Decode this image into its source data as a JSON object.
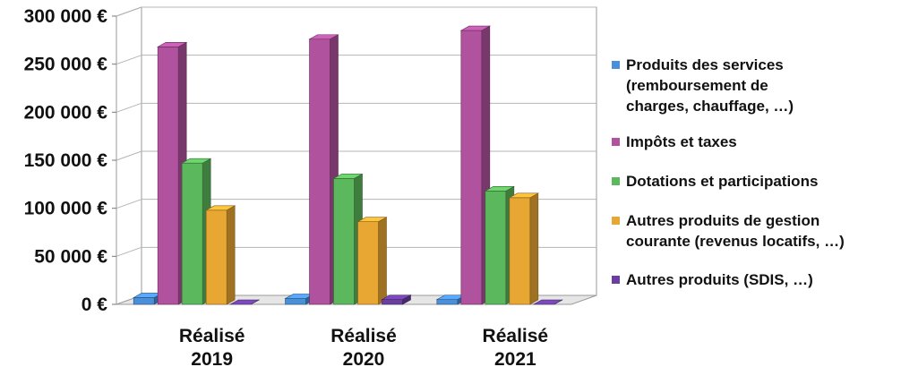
{
  "chart_data": {
    "type": "bar",
    "categories": [
      "Réalisé 2019",
      "Réalisé 2020",
      "Réalisé 2021"
    ],
    "category_lines": [
      [
        "Réalisé",
        "2019"
      ],
      [
        "Réalisé",
        "2020"
      ],
      [
        "Réalisé",
        "2021"
      ]
    ],
    "y_ticks": [
      "0 €",
      "50 000 €",
      "100 000 €",
      "150 000 €",
      "200 000 €",
      "250 000 €",
      "300 000 €"
    ],
    "ylim": [
      0,
      300000
    ],
    "grid": true,
    "legend_position": "right",
    "series": [
      {
        "name": "Produits des services (remboursement de charges, chauffage, …)",
        "legend_lines": [
          "Produits des services",
          "(remboursement de",
          "charges, chauffage, …)"
        ],
        "color": "#4a90d9",
        "values": [
          7000,
          6000,
          5000
        ]
      },
      {
        "name": "Impôts et taxes",
        "legend_lines": [
          "Impôts et taxes"
        ],
        "color": "#b0529e",
        "values": [
          268000,
          276000,
          285000
        ]
      },
      {
        "name": "Dotations et participations",
        "legend_lines": [
          "Dotations et participations"
        ],
        "color": "#5cb85c",
        "values": [
          147000,
          131000,
          118000
        ]
      },
      {
        "name": "Autres produits de gestion courante (revenus locatifs, …)",
        "legend_lines": [
          "Autres produits de gestion",
          "courante (revenus locatifs, …)"
        ],
        "color": "#e8a732",
        "values": [
          98000,
          86000,
          111000
        ]
      },
      {
        "name": "Autres produits (SDIS, …)",
        "legend_lines": [
          "Autres produits (SDIS, …)"
        ],
        "color": "#6a3fa0",
        "values": [
          0,
          5000,
          0
        ]
      }
    ]
  }
}
